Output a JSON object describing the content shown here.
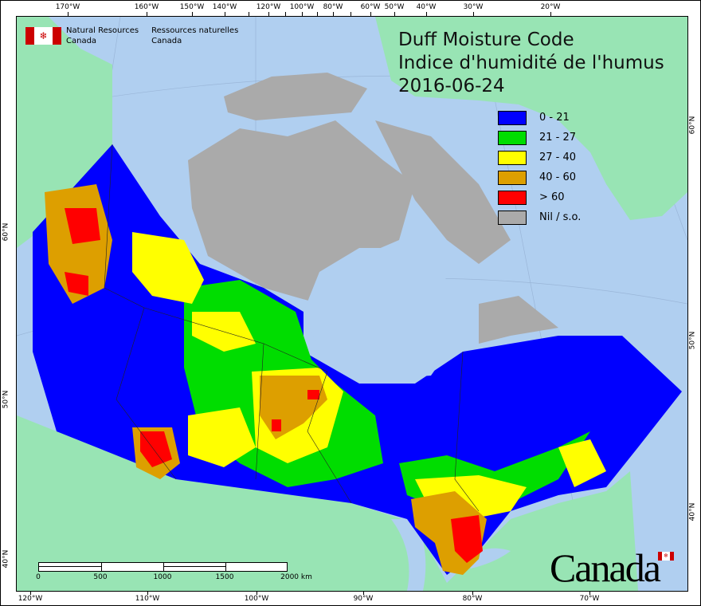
{
  "header": {
    "agency_en": [
      "Natural Resources",
      "Canada"
    ],
    "agency_fr": [
      "Ressources naturelles",
      "Canada"
    ]
  },
  "title": {
    "line1": "Duff Moisture Code",
    "line2": "Indice d'humidité de l'humus",
    "date": "2016-06-24"
  },
  "legend": [
    {
      "label": "0 - 21",
      "color": "#0000ff"
    },
    {
      "label": "21 - 27",
      "color": "#00dd00"
    },
    {
      "label": "27 - 40",
      "color": "#ffff00"
    },
    {
      "label": "40 - 60",
      "color": "#dd9f00"
    },
    {
      "label": "> 60",
      "color": "#ff0000"
    },
    {
      "label": "Nil / s.o.",
      "color": "#aaaaaa"
    }
  ],
  "axes": {
    "top": [
      "170°W",
      "160°W",
      "150°W",
      "140°W",
      "120°W",
      "100°W",
      "80°W",
      "60°W",
      "50°W",
      "40°W",
      "30°W",
      "20°W"
    ],
    "bottom": [
      "120°W",
      "110°W",
      "100°W",
      "90°W",
      "80°W",
      "70°W"
    ],
    "left": [
      "60°N",
      "50°N",
      "40°N"
    ],
    "right": [
      "60°N",
      "50°N",
      "40°N"
    ]
  },
  "scale_bar": {
    "labels": [
      "0",
      "500",
      "1000",
      "1500",
      "2000  km"
    ]
  },
  "wordmark": "Canada",
  "colors": {
    "ocean": "#b0cff0",
    "land": "#98e4b4",
    "no_data": "#aaaaaa"
  }
}
